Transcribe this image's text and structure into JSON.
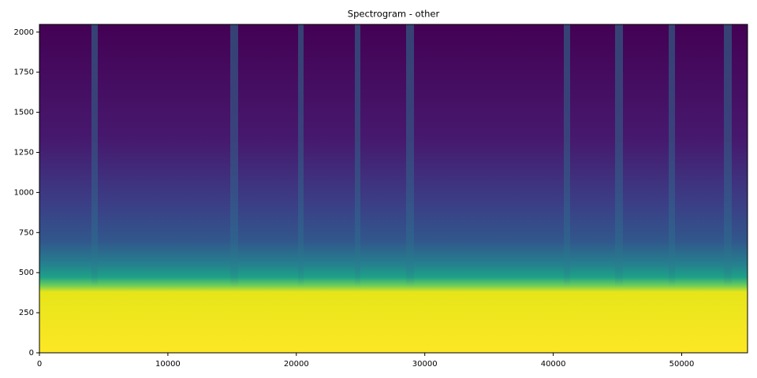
{
  "chart_data": {
    "type": "spectrogram",
    "title": "Spectrogram - other",
    "xlim": [
      0,
      55125
    ],
    "xticks": [
      0,
      10000,
      20000,
      30000,
      40000,
      50000
    ],
    "ylim": [
      0,
      2048
    ],
    "yticks": [
      0,
      250,
      500,
      750,
      1000,
      1250,
      1500,
      1750,
      2000
    ],
    "colormap": "viridis"
  }
}
